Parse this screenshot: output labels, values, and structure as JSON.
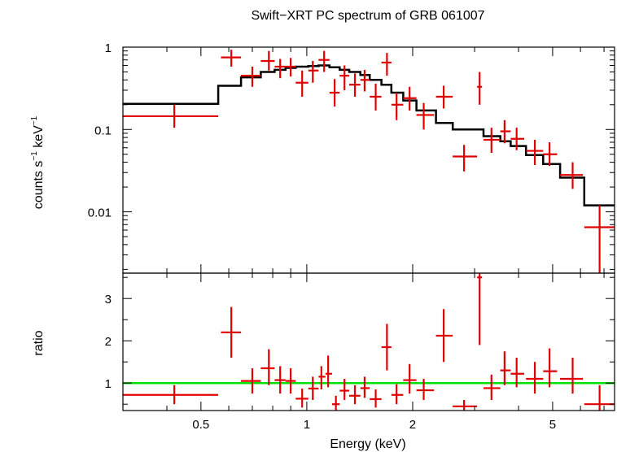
{
  "chart_data": {
    "type": "scatter",
    "title": "Swift−XRT PC spectrum of GRB 061007",
    "xlabel": "Energy (keV)",
    "xscale": "log",
    "xlim": [
      0.3,
      7.5
    ],
    "xticks": [
      {
        "v": 0.5,
        "label": "0.5"
      },
      {
        "v": 1,
        "label": "1"
      },
      {
        "v": 2,
        "label": "2"
      },
      {
        "v": 5,
        "label": "5"
      }
    ],
    "colors": {
      "data": "#e00000",
      "model": "#000000",
      "unity": "#00e000"
    },
    "panels": [
      {
        "name": "spectrum",
        "ylabel_main": "counts s",
        "ylabel_sup1": "−1",
        "ylabel_mid": " keV",
        "ylabel_sup2": "−1",
        "yscale": "log",
        "ylim": [
          0.0018,
          1
        ],
        "yticks": [
          {
            "v": 1,
            "label": "1"
          },
          {
            "v": 0.1,
            "label": "0.1"
          },
          {
            "v": 0.01,
            "label": "0.01"
          }
        ],
        "data": [
          {
            "x": 0.42,
            "xlo": 0.3,
            "xhi": 0.56,
            "y": 0.145,
            "ylo": 0.105,
            "yhi": 0.2
          },
          {
            "x": 0.61,
            "xlo": 0.57,
            "xhi": 0.65,
            "y": 0.75,
            "ylo": 0.58,
            "yhi": 0.93
          },
          {
            "x": 0.7,
            "xlo": 0.65,
            "xhi": 0.74,
            "y": 0.45,
            "ylo": 0.33,
            "yhi": 0.58
          },
          {
            "x": 0.78,
            "xlo": 0.74,
            "xhi": 0.81,
            "y": 0.68,
            "ylo": 0.52,
            "yhi": 0.9
          },
          {
            "x": 0.84,
            "xlo": 0.81,
            "xhi": 0.87,
            "y": 0.58,
            "ylo": 0.42,
            "yhi": 0.72
          },
          {
            "x": 0.9,
            "xlo": 0.87,
            "xhi": 0.93,
            "y": 0.58,
            "ylo": 0.44,
            "yhi": 0.74
          },
          {
            "x": 0.97,
            "xlo": 0.93,
            "xhi": 1.01,
            "y": 0.37,
            "ylo": 0.25,
            "yhi": 0.52
          },
          {
            "x": 1.04,
            "xlo": 1.01,
            "xhi": 1.08,
            "y": 0.52,
            "ylo": 0.37,
            "yhi": 0.68
          },
          {
            "x": 1.12,
            "xlo": 1.08,
            "xhi": 1.16,
            "y": 0.7,
            "ylo": 0.5,
            "yhi": 0.9
          },
          {
            "x": 1.2,
            "xlo": 1.16,
            "xhi": 1.24,
            "y": 0.28,
            "ylo": 0.19,
            "yhi": 0.41
          },
          {
            "x": 1.28,
            "xlo": 1.24,
            "xhi": 1.32,
            "y": 0.45,
            "ylo": 0.3,
            "yhi": 0.6
          },
          {
            "x": 1.37,
            "xlo": 1.32,
            "xhi": 1.42,
            "y": 0.35,
            "ylo": 0.25,
            "yhi": 0.48
          },
          {
            "x": 1.46,
            "xlo": 1.42,
            "xhi": 1.51,
            "y": 0.4,
            "ylo": 0.29,
            "yhi": 0.53
          },
          {
            "x": 1.57,
            "xlo": 1.51,
            "xhi": 1.63,
            "y": 0.25,
            "ylo": 0.17,
            "yhi": 0.36
          },
          {
            "x": 1.69,
            "xlo": 1.63,
            "xhi": 1.74,
            "y": 0.65,
            "ylo": 0.45,
            "yhi": 0.85
          },
          {
            "x": 1.8,
            "xlo": 1.74,
            "xhi": 1.88,
            "y": 0.2,
            "ylo": 0.13,
            "yhi": 0.28
          },
          {
            "x": 1.96,
            "xlo": 1.88,
            "xhi": 2.05,
            "y": 0.24,
            "ylo": 0.17,
            "yhi": 0.33
          },
          {
            "x": 2.15,
            "xlo": 2.05,
            "xhi": 2.3,
            "y": 0.15,
            "ylo": 0.1,
            "yhi": 0.21
          },
          {
            "x": 2.45,
            "xlo": 2.33,
            "xhi": 2.6,
            "y": 0.25,
            "ylo": 0.18,
            "yhi": 0.34
          },
          {
            "x": 2.8,
            "xlo": 2.6,
            "xhi": 3.05,
            "y": 0.047,
            "ylo": 0.031,
            "yhi": 0.065
          },
          {
            "x": 3.1,
            "xlo": 3.05,
            "xhi": 3.15,
            "y": 0.33,
            "ylo": 0.2,
            "yhi": 0.5
          },
          {
            "x": 3.35,
            "xlo": 3.18,
            "xhi": 3.55,
            "y": 0.075,
            "ylo": 0.052,
            "yhi": 0.105
          },
          {
            "x": 3.65,
            "xlo": 3.55,
            "xhi": 3.8,
            "y": 0.095,
            "ylo": 0.068,
            "yhi": 0.13
          },
          {
            "x": 3.95,
            "xlo": 3.8,
            "xhi": 4.15,
            "y": 0.077,
            "ylo": 0.056,
            "yhi": 0.105
          },
          {
            "x": 4.45,
            "xlo": 4.2,
            "xhi": 4.7,
            "y": 0.055,
            "ylo": 0.037,
            "yhi": 0.075
          },
          {
            "x": 4.9,
            "xlo": 4.7,
            "xhi": 5.15,
            "y": 0.05,
            "ylo": 0.036,
            "yhi": 0.07
          },
          {
            "x": 5.7,
            "xlo": 5.25,
            "xhi": 6.1,
            "y": 0.028,
            "ylo": 0.019,
            "yhi": 0.04
          },
          {
            "x": 6.8,
            "xlo": 6.15,
            "xhi": 7.5,
            "y": 0.0065,
            "ylo": 0.0018,
            "yhi": 0.012
          }
        ],
        "model": [
          {
            "x0": 0.3,
            "x1": 0.56,
            "y": 0.205
          },
          {
            "x0": 0.56,
            "x1": 0.65,
            "y": 0.34
          },
          {
            "x0": 0.65,
            "x1": 0.74,
            "y": 0.43
          },
          {
            "x0": 0.74,
            "x1": 0.81,
            "y": 0.5
          },
          {
            "x0": 0.81,
            "x1": 0.87,
            "y": 0.53
          },
          {
            "x0": 0.87,
            "x1": 0.93,
            "y": 0.56
          },
          {
            "x0": 0.93,
            "x1": 1.01,
            "y": 0.58
          },
          {
            "x0": 1.01,
            "x1": 1.08,
            "y": 0.59
          },
          {
            "x0": 1.08,
            "x1": 1.16,
            "y": 0.6
          },
          {
            "x0": 1.16,
            "x1": 1.24,
            "y": 0.57
          },
          {
            "x0": 1.24,
            "x1": 1.32,
            "y": 0.53
          },
          {
            "x0": 1.32,
            "x1": 1.42,
            "y": 0.5
          },
          {
            "x0": 1.42,
            "x1": 1.51,
            "y": 0.46
          },
          {
            "x0": 1.51,
            "x1": 1.63,
            "y": 0.4
          },
          {
            "x0": 1.63,
            "x1": 1.74,
            "y": 0.35
          },
          {
            "x0": 1.74,
            "x1": 1.88,
            "y": 0.28
          },
          {
            "x0": 1.88,
            "x1": 2.05,
            "y": 0.225
          },
          {
            "x0": 2.05,
            "x1": 2.33,
            "y": 0.17
          },
          {
            "x0": 2.33,
            "x1": 2.6,
            "y": 0.12
          },
          {
            "x0": 2.6,
            "x1": 3.18,
            "y": 0.1
          },
          {
            "x0": 3.18,
            "x1": 3.55,
            "y": 0.083
          },
          {
            "x0": 3.55,
            "x1": 3.8,
            "y": 0.072
          },
          {
            "x0": 3.8,
            "x1": 4.2,
            "y": 0.063
          },
          {
            "x0": 4.2,
            "x1": 4.7,
            "y": 0.049
          },
          {
            "x0": 4.7,
            "x1": 5.25,
            "y": 0.038
          },
          {
            "x0": 5.25,
            "x1": 6.15,
            "y": 0.026
          },
          {
            "x0": 6.15,
            "x1": 7.5,
            "y": 0.012
          }
        ]
      },
      {
        "name": "ratio",
        "ylabel_main": "ratio",
        "yscale": "linear",
        "ylim": [
          0.35,
          3.6
        ],
        "yticks": [
          {
            "v": 1,
            "label": "1"
          },
          {
            "v": 2,
            "label": "2"
          },
          {
            "v": 3,
            "label": "3"
          }
        ],
        "reference_line": 1,
        "data": [
          {
            "x": 0.42,
            "xlo": 0.3,
            "xhi": 0.56,
            "y": 0.72,
            "ylo": 0.5,
            "yhi": 0.95
          },
          {
            "x": 0.61,
            "xlo": 0.57,
            "xhi": 0.65,
            "y": 2.2,
            "ylo": 1.6,
            "yhi": 2.8
          },
          {
            "x": 0.7,
            "xlo": 0.65,
            "xhi": 0.74,
            "y": 1.05,
            "ylo": 0.75,
            "yhi": 1.35
          },
          {
            "x": 0.78,
            "xlo": 0.74,
            "xhi": 0.81,
            "y": 1.35,
            "ylo": 0.95,
            "yhi": 1.8
          },
          {
            "x": 0.84,
            "xlo": 0.81,
            "xhi": 0.87,
            "y": 1.07,
            "ylo": 0.75,
            "yhi": 1.4
          },
          {
            "x": 0.9,
            "xlo": 0.87,
            "xhi": 0.93,
            "y": 1.05,
            "ylo": 0.75,
            "yhi": 1.35
          },
          {
            "x": 0.97,
            "xlo": 0.93,
            "xhi": 1.01,
            "y": 0.63,
            "ylo": 0.42,
            "yhi": 0.87
          },
          {
            "x": 1.04,
            "xlo": 1.01,
            "xhi": 1.08,
            "y": 0.87,
            "ylo": 0.6,
            "yhi": 1.15
          },
          {
            "x": 1.1,
            "xlo": 1.08,
            "xhi": 1.13,
            "y": 1.15,
            "ylo": 0.85,
            "yhi": 1.4
          },
          {
            "x": 1.15,
            "xlo": 1.13,
            "xhi": 1.18,
            "y": 1.22,
            "ylo": 0.9,
            "yhi": 1.65
          },
          {
            "x": 1.21,
            "xlo": 1.18,
            "xhi": 1.24,
            "y": 0.5,
            "ylo": 0.35,
            "yhi": 0.7
          },
          {
            "x": 1.28,
            "xlo": 1.24,
            "xhi": 1.32,
            "y": 0.82,
            "ylo": 0.6,
            "yhi": 1.1
          },
          {
            "x": 1.37,
            "xlo": 1.32,
            "xhi": 1.42,
            "y": 0.7,
            "ylo": 0.5,
            "yhi": 0.95
          },
          {
            "x": 1.46,
            "xlo": 1.42,
            "xhi": 1.51,
            "y": 0.88,
            "ylo": 0.65,
            "yhi": 1.15
          },
          {
            "x": 1.57,
            "xlo": 1.51,
            "xhi": 1.63,
            "y": 0.62,
            "ylo": 0.42,
            "yhi": 0.85
          },
          {
            "x": 1.69,
            "xlo": 1.63,
            "xhi": 1.74,
            "y": 1.85,
            "ylo": 1.3,
            "yhi": 2.4
          },
          {
            "x": 1.8,
            "xlo": 1.74,
            "xhi": 1.88,
            "y": 0.72,
            "ylo": 0.5,
            "yhi": 0.97
          },
          {
            "x": 1.96,
            "xlo": 1.88,
            "xhi": 2.05,
            "y": 1.07,
            "ylo": 0.75,
            "yhi": 1.45
          },
          {
            "x": 2.15,
            "xlo": 2.05,
            "xhi": 2.3,
            "y": 0.83,
            "ylo": 0.6,
            "yhi": 1.1
          },
          {
            "x": 2.45,
            "xlo": 2.33,
            "xhi": 2.6,
            "y": 2.12,
            "ylo": 1.5,
            "yhi": 2.75
          },
          {
            "x": 2.8,
            "xlo": 2.6,
            "xhi": 3.05,
            "y": 0.45,
            "ylo": 0.35,
            "yhi": 0.6
          },
          {
            "x": 3.1,
            "xlo": 3.05,
            "xhi": 3.15,
            "y": 3.5,
            "ylo": 1.9,
            "yhi": 3.6
          },
          {
            "x": 3.35,
            "xlo": 3.18,
            "xhi": 3.55,
            "y": 0.88,
            "ylo": 0.6,
            "yhi": 1.2
          },
          {
            "x": 3.65,
            "xlo": 3.55,
            "xhi": 3.8,
            "y": 1.3,
            "ylo": 0.95,
            "yhi": 1.75
          },
          {
            "x": 3.95,
            "xlo": 3.8,
            "xhi": 4.15,
            "y": 1.22,
            "ylo": 0.9,
            "yhi": 1.6
          },
          {
            "x": 4.45,
            "xlo": 4.2,
            "xhi": 4.7,
            "y": 1.1,
            "ylo": 0.75,
            "yhi": 1.5
          },
          {
            "x": 4.9,
            "xlo": 4.7,
            "xhi": 5.15,
            "y": 1.28,
            "ylo": 0.9,
            "yhi": 1.82
          },
          {
            "x": 5.7,
            "xlo": 5.25,
            "xhi": 6.1,
            "y": 1.1,
            "ylo": 0.75,
            "yhi": 1.6
          },
          {
            "x": 6.8,
            "xlo": 6.15,
            "xhi": 7.5,
            "y": 0.5,
            "ylo": 0.35,
            "yhi": 0.95
          }
        ]
      }
    ]
  }
}
